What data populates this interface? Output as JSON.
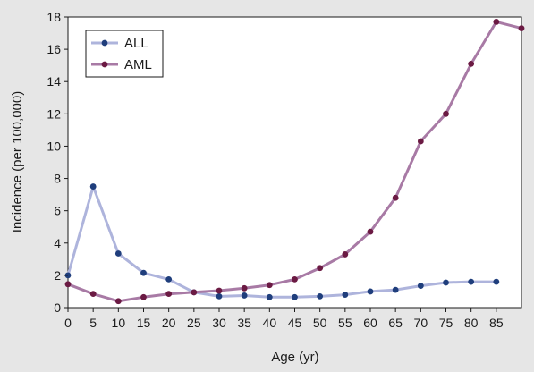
{
  "chart_data": {
    "type": "line",
    "title": "",
    "xlabel": "Age (yr)",
    "ylabel": "Incidence (per 100,000)",
    "xlim": [
      0,
      90
    ],
    "ylim": [
      0,
      18
    ],
    "xticks": [
      0,
      5,
      10,
      15,
      20,
      25,
      30,
      35,
      40,
      45,
      50,
      55,
      60,
      65,
      70,
      75,
      80,
      85
    ],
    "yticks": [
      0,
      2,
      4,
      6,
      8,
      10,
      12,
      14,
      16,
      18
    ],
    "grid": false,
    "legend_position": "top-left",
    "background_color": "#e6e6e6",
    "plot_background_color": "#ffffff",
    "series": [
      {
        "name": "ALL",
        "line_color": "#aeb4dc",
        "marker_color": "#1f3e7c",
        "x": [
          0,
          5,
          10,
          15,
          20,
          25,
          30,
          35,
          40,
          45,
          50,
          55,
          60,
          65,
          70,
          75,
          80,
          85
        ],
        "values": [
          2.0,
          7.5,
          3.35,
          2.15,
          1.75,
          0.95,
          0.7,
          0.75,
          0.65,
          0.65,
          0.7,
          0.8,
          1.0,
          1.1,
          1.35,
          1.55,
          1.6,
          1.6
        ]
      },
      {
        "name": "AML",
        "line_color": "#a87aa5",
        "marker_color": "#6b1a43",
        "x": [
          0,
          5,
          10,
          15,
          20,
          25,
          30,
          35,
          40,
          45,
          50,
          55,
          60,
          65,
          70,
          75,
          80,
          85,
          90
        ],
        "values": [
          1.45,
          0.85,
          0.4,
          0.65,
          0.85,
          0.95,
          1.05,
          1.2,
          1.4,
          1.75,
          2.45,
          3.3,
          4.7,
          6.8,
          10.3,
          12.0,
          15.1,
          17.7,
          17.3
        ]
      }
    ]
  }
}
